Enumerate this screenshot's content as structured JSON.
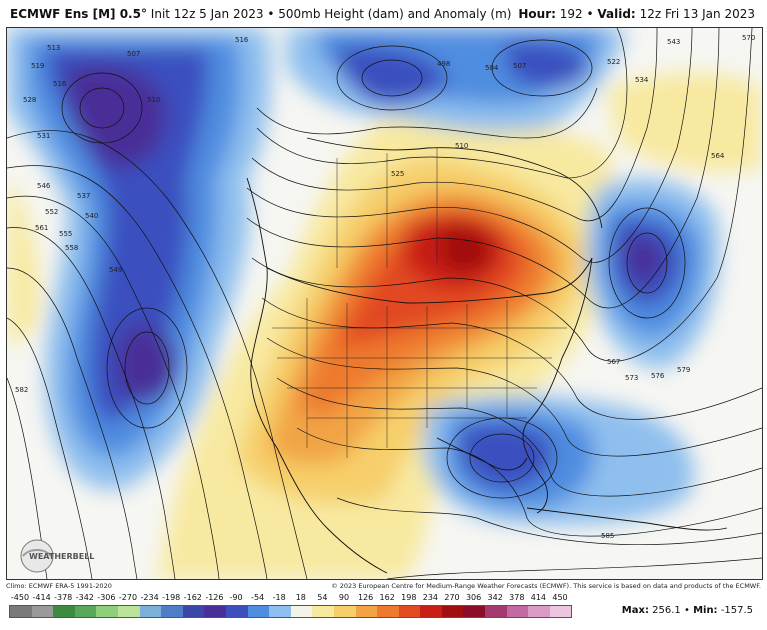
{
  "header": {
    "model": "ECMWF Ens [M] 0.5°",
    "init": "Init 12z 5 Jan 2023",
    "bullet": "•",
    "field": "500mb Height (dam) and Anomaly (m)",
    "hour_label": "Hour:",
    "hour_value": "192",
    "valid_label": "Valid:",
    "valid_value": "12z Fri 13 Jan 2023"
  },
  "credits": {
    "climo": "Climo: ECMWF ERA-5 1991-2020",
    "copyright": "© 2023 European Centre for Medium-Range Weather Forecasts (ECMWF). This service is based on data and products of the ECMWF."
  },
  "logo": {
    "text": "WEATHERBELL"
  },
  "colorbar": {
    "ticks": [
      "-450",
      "-414",
      "-378",
      "-342",
      "-306",
      "-270",
      "-234",
      "-198",
      "-162",
      "-126",
      "-90",
      "-54",
      "-18",
      "18",
      "54",
      "90",
      "126",
      "162",
      "198",
      "234",
      "270",
      "306",
      "342",
      "378",
      "414",
      "450"
    ],
    "colors": [
      "#7a7a7a",
      "#9a9a9a",
      "#3e8a3e",
      "#5aa75a",
      "#8dcf7a",
      "#bde39a",
      "#7bb0d8",
      "#4f7ec6",
      "#3a46a8",
      "#4a2f98",
      "#3b4fbf",
      "#4f8de0",
      "#8fbfee",
      "#f3f3e8",
      "#f8e9a0",
      "#f6cf6a",
      "#f2a444",
      "#ee7a2e",
      "#e24a20",
      "#c81e14",
      "#a01010",
      "#8c0d2a",
      "#a53a6e",
      "#c46aa2",
      "#dc9ac6",
      "#ecc6e0"
    ]
  },
  "stats": {
    "max_label": "Max:",
    "max_value": "256.1",
    "separator": "•",
    "min_label": "Min:",
    "min_value": "-157.5"
  },
  "map": {
    "contour_labels": [
      "516",
      "513",
      "519",
      "507",
      "516",
      "528",
      "531",
      "510",
      "498",
      "504",
      "507",
      "522",
      "534",
      "543",
      "570",
      "510",
      "525",
      "546",
      "552",
      "537",
      "540",
      "561",
      "555",
      "558",
      "549",
      "564",
      "582",
      "567",
      "573",
      "576",
      "579",
      "585"
    ]
  }
}
